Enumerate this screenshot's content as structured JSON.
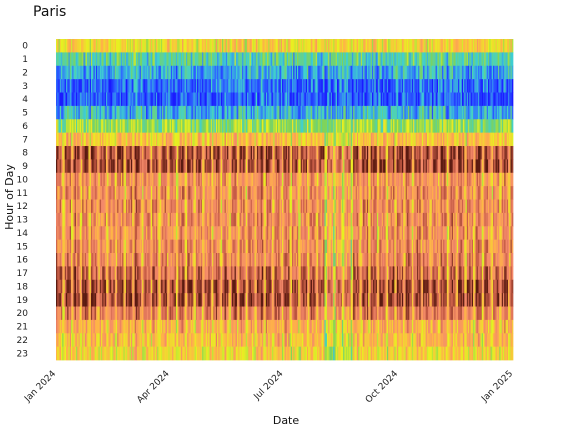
{
  "chart_data": {
    "type": "heatmap",
    "title": "Paris",
    "xlabel": "Date",
    "ylabel": "Hour of Day",
    "x_range": [
      "2024-01-01",
      "2025-01-01"
    ],
    "x_ticks": [
      "Jan 2024",
      "Apr 2024",
      "Jul 2024",
      "Oct 2024",
      "Jan 2025"
    ],
    "x_tick_dates": [
      "2024-01-01",
      "2024-04-01",
      "2024-07-01",
      "2024-10-01",
      "2025-01-01"
    ],
    "y_ticks": [
      "0",
      "1",
      "2",
      "3",
      "4",
      "5",
      "6",
      "7",
      "8",
      "9",
      "10",
      "11",
      "12",
      "13",
      "14",
      "15",
      "16",
      "17",
      "18",
      "19",
      "20",
      "21",
      "22",
      "23"
    ],
    "hourly_typical_level": [
      0.55,
      0.3,
      0.2,
      0.12,
      0.1,
      0.22,
      0.4,
      0.62,
      0.92,
      0.93,
      0.75,
      0.76,
      0.78,
      0.77,
      0.76,
      0.77,
      0.79,
      0.86,
      0.93,
      0.93,
      0.82,
      0.68,
      0.64,
      0.58
    ],
    "pattern": "weekday peaks at 8-9h and 17-19h, weekend days lighter, lower levels around mid-August",
    "colorscale": [
      "#1a1aff",
      "#2f6bff",
      "#3fd0d0",
      "#7ed35a",
      "#e8f020",
      "#ffb347",
      "#f48a6a",
      "#c45a44",
      "#5a1a10"
    ],
    "grid": false,
    "legend": "none"
  }
}
